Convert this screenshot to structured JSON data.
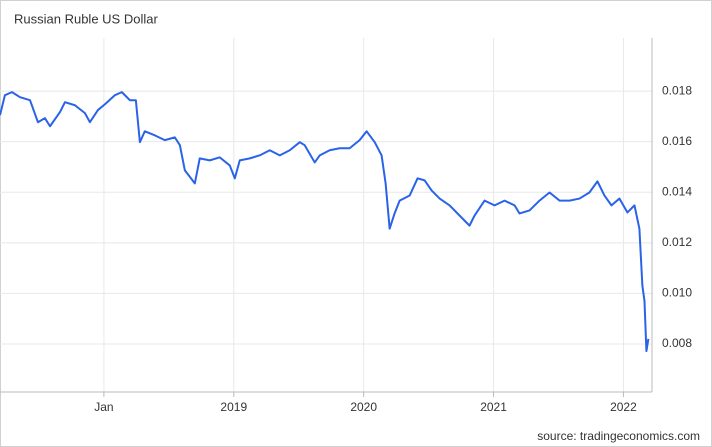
{
  "chart_data": {
    "type": "line",
    "title": "Russian Ruble US Dollar",
    "source": "source: tradingeconomics.com",
    "color": "#2a63e8",
    "grid": true,
    "xlim": [
      2017.2,
      2022.22
    ],
    "ylim": [
      0.0061,
      0.0201
    ],
    "xticks": [
      {
        "value": 2018,
        "label": "Jan"
      },
      2019,
      2020,
      2021,
      2022
    ],
    "yticks": [
      0.008,
      {
        "value": 0.01,
        "label": "0.010"
      },
      0.012,
      0.014,
      0.016,
      0.018
    ],
    "x": [
      2017.2,
      2017.238,
      2017.292,
      2017.354,
      2017.431,
      2017.492,
      2017.546,
      2017.585,
      2017.662,
      2017.7,
      2017.777,
      2017.854,
      2017.892,
      2017.954,
      2018.008,
      2018.085,
      2018.138,
      2018.2,
      2018.246,
      2018.277,
      2018.315,
      2018.392,
      2018.469,
      2018.546,
      2018.585,
      2018.623,
      2018.7,
      2018.738,
      2018.815,
      2018.892,
      2018.969,
      2019.008,
      2019.046,
      2019.123,
      2019.2,
      2019.277,
      2019.354,
      2019.431,
      2019.508,
      2019.546,
      2019.623,
      2019.662,
      2019.738,
      2019.815,
      2019.892,
      2019.969,
      2020.023,
      2020.085,
      2020.138,
      2020.169,
      2020.2,
      2020.238,
      2020.277,
      2020.354,
      2020.415,
      2020.469,
      2020.523,
      2020.585,
      2020.662,
      2020.738,
      2020.815,
      2020.854,
      2020.931,
      2021.008,
      2021.085,
      2021.162,
      2021.2,
      2021.277,
      2021.354,
      2021.431,
      2021.508,
      2021.585,
      2021.662,
      2021.738,
      2021.8,
      2021.854,
      2021.908,
      2021.969,
      2022.031,
      2022.085,
      2022.123,
      2022.146,
      2022.162,
      2022.177,
      2022.192
    ],
    "values": [
      0.01705,
      0.01784,
      0.01796,
      0.01776,
      0.01764,
      0.01677,
      0.01693,
      0.01661,
      0.01717,
      0.01756,
      0.01744,
      0.01713,
      0.01677,
      0.01725,
      0.01748,
      0.01784,
      0.01796,
      0.01764,
      0.01764,
      0.01598,
      0.01641,
      0.01625,
      0.01606,
      0.01617,
      0.01586,
      0.01487,
      0.01435,
      0.01534,
      0.01526,
      0.01538,
      0.01506,
      0.01455,
      0.01526,
      0.01534,
      0.01546,
      0.01566,
      0.01546,
      0.01566,
      0.01598,
      0.01586,
      0.01518,
      0.01546,
      0.01566,
      0.01574,
      0.01574,
      0.01606,
      0.01641,
      0.01598,
      0.01546,
      0.01435,
      0.01256,
      0.01316,
      0.01367,
      0.01387,
      0.01455,
      0.01447,
      0.01407,
      0.01375,
      0.01348,
      0.01308,
      0.01268,
      0.01308,
      0.01367,
      0.01348,
      0.01367,
      0.01348,
      0.01316,
      0.01328,
      0.01367,
      0.01399,
      0.01367,
      0.01367,
      0.01375,
      0.01399,
      0.01443,
      0.01387,
      0.01348,
      0.01375,
      0.0132,
      0.01348,
      0.01256,
      0.0103,
      0.00971,
      0.00772,
      0.0082
    ]
  }
}
